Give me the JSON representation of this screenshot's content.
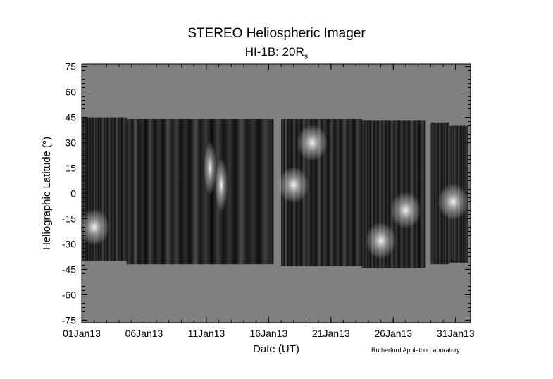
{
  "chart_data": {
    "type": "heatmap",
    "title": "STEREO Heliospheric Imager",
    "subtitle": {
      "main": "HI-1B: 20R",
      "subscript": "s"
    },
    "xlabel": "Date (UT)",
    "ylabel": "Heliographic Latitude (°)",
    "credit": "Rutherford Appleton Laboratory",
    "x_ticks": [
      "01Jan13",
      "06Jan13",
      "11Jan13",
      "16Jan13",
      "21Jan13",
      "26Jan13",
      "31Jan13"
    ],
    "x_tick_days": [
      1,
      6,
      11,
      16,
      21,
      26,
      31
    ],
    "xlim_days": [
      1,
      32.2
    ],
    "y_ticks": [
      75,
      60,
      45,
      30,
      15,
      0,
      -15,
      -30,
      -45,
      -60,
      -75
    ],
    "ylim": [
      -76.5,
      76.5
    ],
    "colormap": "grayscale",
    "background_color": "#808080",
    "data_segments": [
      {
        "start_day": 1.0,
        "end_day": 4.6,
        "lat_top": 45,
        "lat_bottom": -40
      },
      {
        "start_day": 4.6,
        "end_day": 16.4,
        "lat_top": 44,
        "lat_bottom": -42
      },
      {
        "start_day": 17.0,
        "end_day": 23.5,
        "lat_top": 44,
        "lat_bottom": -43
      },
      {
        "start_day": 23.5,
        "end_day": 28.6,
        "lat_top": 43,
        "lat_bottom": -44
      },
      {
        "start_day": 29.0,
        "end_day": 30.5,
        "lat_top": 42,
        "lat_bottom": -42
      },
      {
        "start_day": 30.5,
        "end_day": 32.0,
        "lat_top": 40,
        "lat_bottom": -41
      }
    ],
    "data_gap_days": [
      16.4,
      17.0
    ],
    "bright_features": [
      {
        "day": 2.0,
        "lat": -20,
        "label": "bright-patch"
      },
      {
        "day": 11.3,
        "lat": 15,
        "label": "bright-streak"
      },
      {
        "day": 12.2,
        "lat": 5,
        "label": "bright-streak"
      },
      {
        "day": 18.0,
        "lat": 5,
        "label": "bright-patch"
      },
      {
        "day": 19.5,
        "lat": 30,
        "label": "bright-patch"
      },
      {
        "day": 25.0,
        "lat": -28,
        "label": "bright-patch"
      },
      {
        "day": 27.0,
        "lat": -10,
        "label": "bright-patch"
      },
      {
        "day": 30.8,
        "lat": -5,
        "label": "bright-patch"
      }
    ]
  }
}
